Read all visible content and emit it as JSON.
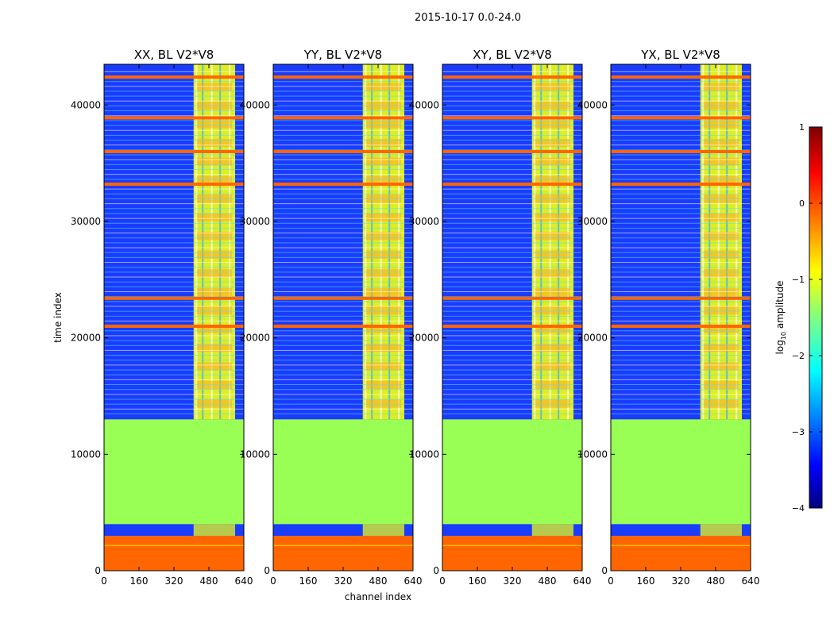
{
  "chart_data": {
    "type": "heatmap",
    "suptitle": "2015-10-17 0.0-24.0",
    "xlabel": "channel index",
    "ylabel": "time index",
    "xlim": [
      0,
      640
    ],
    "ylim": [
      0,
      43500
    ],
    "xticks": [
      0,
      160,
      320,
      480,
      640
    ],
    "yticks": [
      0,
      10000,
      20000,
      30000,
      40000
    ],
    "panels": [
      {
        "title": "XX, BL V2*V8"
      },
      {
        "title": "YY, BL V2*V8"
      },
      {
        "title": "XY, BL V2*V8"
      },
      {
        "title": "YX, BL V2*V8"
      }
    ],
    "colorbar": {
      "label": "log",
      "label_sub": "10",
      "label_suffix": " amplitude",
      "range": [
        -4,
        1
      ],
      "ticks": [
        {
          "value": 1,
          "label": "1"
        },
        {
          "value": 0,
          "label": "0"
        },
        {
          "value": -1,
          "label": "−1"
        },
        {
          "value": -2,
          "label": "−2"
        },
        {
          "value": -3,
          "label": "−3"
        },
        {
          "value": -4,
          "label": "−4"
        }
      ]
    },
    "regions": {
      "flagged_green_rows": [
        4000,
        13000
      ],
      "orange_rows": [
        0,
        3000
      ],
      "bright_channel_band": [
        410,
        600
      ],
      "strong_rfi_rows": [
        21000,
        23400,
        33200,
        36000,
        38900,
        42400
      ]
    },
    "colors": {
      "background": "#1a3cff",
      "flagged": "#99ff55",
      "orange": "#ff6600",
      "band": "#ddee22"
    }
  }
}
